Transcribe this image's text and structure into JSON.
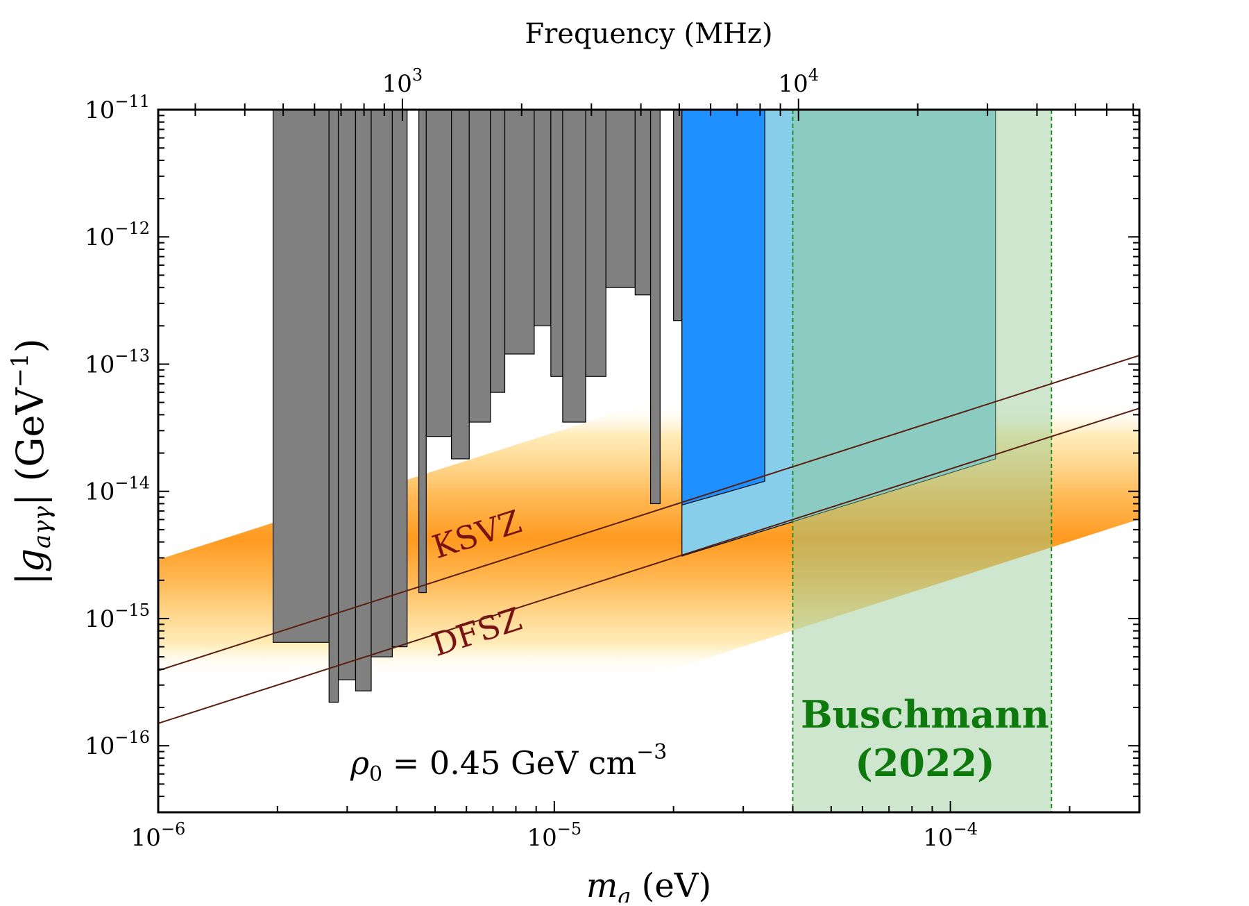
{
  "chart_data": {
    "type": "area",
    "xlabel": "m_a (eV)",
    "xlabel_parts": {
      "var": "m",
      "sub": "a",
      "unit": " (eV)"
    },
    "ylabel_parts": {
      "bar_l": "|",
      "var": "g",
      "sub": "aγγ",
      "bar_r": "|",
      "unit_pre": " (GeV",
      "exp": "−1",
      "unit_post": ")"
    },
    "top_axis_label": "Frequency (MHz)",
    "x_scale": "log",
    "y_scale": "log",
    "xlim": [
      1e-06,
      0.0003
    ],
    "ylim": [
      3e-17,
      1e-11
    ],
    "x_ticks": [
      {
        "value": 1e-06,
        "base": "10",
        "exp": "−6"
      },
      {
        "value": 1e-05,
        "base": "10",
        "exp": "−5"
      },
      {
        "value": 0.0001,
        "base": "10",
        "exp": "−4"
      }
    ],
    "y_ticks": [
      {
        "value": 1e-11,
        "base": "10",
        "exp": "−11"
      },
      {
        "value": 1e-12,
        "base": "10",
        "exp": "−12"
      },
      {
        "value": 1e-13,
        "base": "10",
        "exp": "−13"
      },
      {
        "value": 1e-14,
        "base": "10",
        "exp": "−14"
      },
      {
        "value": 1e-15,
        "base": "10",
        "exp": "−15"
      },
      {
        "value": 1e-16,
        "base": "10",
        "exp": "−16"
      }
    ],
    "top_ticks": [
      {
        "mhz": 1000,
        "base": "10",
        "exp": "3"
      },
      {
        "mhz": 10000,
        "base": "10",
        "exp": "4"
      }
    ],
    "models": [
      {
        "name": "KSVZ",
        "line_points": [
          [
            1e-06,
            3.9e-16
          ],
          [
            0.0003,
            1.17e-13
          ]
        ],
        "label_at": [
          6.5e-06,
          3.8e-15
        ]
      },
      {
        "name": "DFSZ",
        "line_points": [
          [
            1e-06,
            1.5e-16
          ],
          [
            0.0003,
            4.5e-14
          ]
        ],
        "label_at": [
          6.5e-06,
          6.5e-16
        ]
      }
    ],
    "qcd_band": {
      "color": "#ff8c00",
      "slope_decades_per_decade": 1.0
    },
    "haloscope_limits": {
      "color": "#808080",
      "regions": [
        {
          "x": [
            1.95e-06,
            2.7e-06
          ],
          "y_low": 6.5e-16
        },
        {
          "x": [
            2.7e-06,
            2.85e-06
          ],
          "y_low": 2.2e-16
        },
        {
          "x": [
            2.85e-06,
            3.15e-06
          ],
          "y_low": 3.3e-16
        },
        {
          "x": [
            3.15e-06,
            3.45e-06
          ],
          "y_low": 2.7e-16
        },
        {
          "x": [
            3.45e-06,
            3.9e-06
          ],
          "y_low": 5e-16
        },
        {
          "x": [
            3.9e-06,
            4.25e-06
          ],
          "y_low": 6e-16
        },
        {
          "x": [
            4.55e-06,
            4.75e-06
          ],
          "y_low": 1.6e-15
        },
        {
          "x": [
            4.75e-06,
            5.5e-06
          ],
          "y_low": 2.7e-14
        },
        {
          "x": [
            5.5e-06,
            6.1e-06
          ],
          "y_low": 1.8e-14
        },
        {
          "x": [
            6.1e-06,
            6.9e-06
          ],
          "y_low": 3.5e-14
        },
        {
          "x": [
            6.9e-06,
            7.5e-06
          ],
          "y_low": 6e-14
        },
        {
          "x": [
            7.5e-06,
            8.9e-06
          ],
          "y_low": 1.2e-13
        },
        {
          "x": [
            8.9e-06,
            9.8e-06
          ],
          "y_low": 2e-13
        },
        {
          "x": [
            9.8e-06,
            1.05e-05
          ],
          "y_low": 8e-14
        },
        {
          "x": [
            1.05e-05,
            1.2e-05
          ],
          "y_low": 3.5e-14
        },
        {
          "x": [
            1.2e-05,
            1.35e-05
          ],
          "y_low": 8e-14
        },
        {
          "x": [
            1.35e-05,
            1.6e-05
          ],
          "y_low": 4e-13
        },
        {
          "x": [
            1.6e-05,
            1.75e-05
          ],
          "y_low": 3.5e-13
        },
        {
          "x": [
            1.75e-05,
            1.85e-05
          ],
          "y_low": 8e-15
        },
        {
          "x": [
            2e-05,
            2.1e-05
          ],
          "y_low": 2.2e-13
        }
      ]
    },
    "blue_region": {
      "color": "#1e90ff",
      "x": [
        2.1e-05,
        3.4e-05
      ],
      "y_top": 1e-11,
      "y_bottom": [
        7.8e-15,
        1.2e-14
      ]
    },
    "lightblue_region": {
      "color": "#87ceeb",
      "x": [
        2.1e-05,
        0.00013
      ],
      "y_top": 1e-11,
      "y_bottom": [
        3.1e-15,
        1.8e-14
      ]
    },
    "buschmann_projection": {
      "label": "Buschmann",
      "year": "(2022)",
      "color": "#90c890",
      "x": [
        4e-05,
        0.00018
      ]
    },
    "density_annotation": {
      "lhs": "ρ",
      "sub": "0",
      "rhs": " = 0.45 GeV cm",
      "exp": "−3"
    }
  }
}
